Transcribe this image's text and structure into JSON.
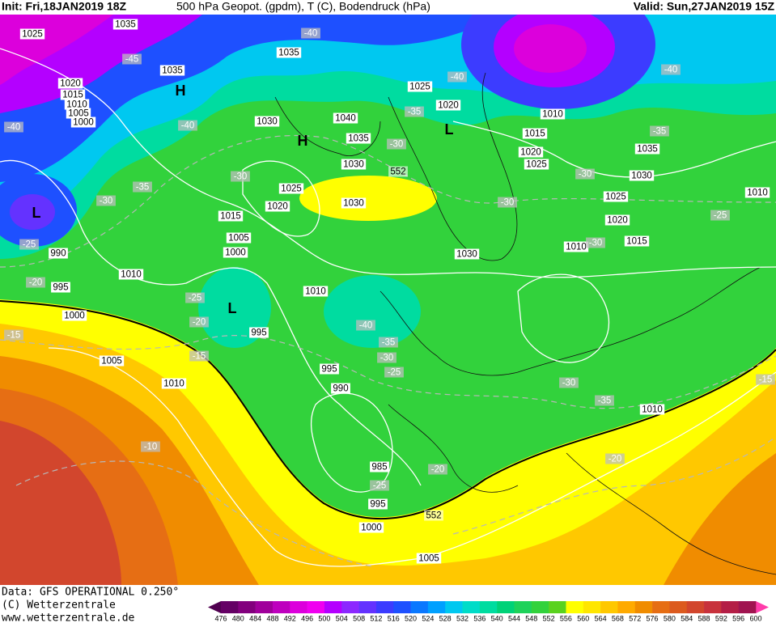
{
  "header": {
    "init": "Init: Fri,18JAN2019 18Z",
    "title": "500 hPa Geopot. (gpdm), T (C), Bodendruck (hPa)",
    "valid": "Valid: Sun,27JAN2019 15Z"
  },
  "footer": {
    "data": "Data: GFS OPERATIONAL 0.250°",
    "copyright": "(C) Wetterzentrale",
    "url": "www.wetterzentrale.de"
  },
  "map": {
    "isobar_labels": [
      "1025",
      "1035",
      "1035",
      "1020",
      "1015",
      "1010",
      "1005",
      "1000",
      "1030",
      "1040",
      "1035",
      "1030",
      "1025",
      "1020",
      "1030",
      "1015",
      "1005",
      "1000",
      "990",
      "1010",
      "995",
      "1000",
      "1005",
      "1010",
      "995",
      "1010",
      "995",
      "990",
      "985",
      "995",
      "1000",
      "1005",
      "1035",
      "1025",
      "1020",
      "1010",
      "1015",
      "1020",
      "1025",
      "1030",
      "1035",
      "1030",
      "1025",
      "1020",
      "1015",
      "1010",
      "1010",
      "1010"
    ],
    "temperature_labels": [
      "-45",
      "-40",
      "-40",
      "-30",
      "-35",
      "-30",
      "-25",
      "-20",
      "-15",
      "-25",
      "-20",
      "-15",
      "-40",
      "-35",
      "-30",
      "-25",
      "-10",
      "-20",
      "-25",
      "-40",
      "-40",
      "-35",
      "-30",
      "-30",
      "-40",
      "-35",
      "-30",
      "-30",
      "-25",
      "-30",
      "-35",
      "-20",
      "-15"
    ],
    "height_labels": [
      "552",
      "552"
    ],
    "pressure_centers": [
      "H",
      "H",
      "L",
      "L",
      "L"
    ]
  },
  "colorbar": {
    "levels": [
      476,
      480,
      484,
      488,
      492,
      496,
      500,
      504,
      508,
      512,
      516,
      520,
      524,
      528,
      532,
      536,
      540,
      544,
      548,
      552,
      556,
      560,
      564,
      568,
      572,
      576,
      580,
      584,
      588,
      592,
      596,
      600
    ],
    "colors": [
      "#640064",
      "#82007d",
      "#a0009b",
      "#be00be",
      "#dc00dc",
      "#f000f0",
      "#b400ff",
      "#8c28ff",
      "#6432ff",
      "#3c3cff",
      "#1e50ff",
      "#0a78ff",
      "#00a0ff",
      "#00c8f0",
      "#00dcc8",
      "#00dca0",
      "#00d278",
      "#1ed25a",
      "#32d23c",
      "#5ad21e",
      "#ffff00",
      "#ffe600",
      "#ffc800",
      "#ffaa00",
      "#f08c00",
      "#e66e14",
      "#dc5a1e",
      "#d2462d",
      "#c8323c",
      "#b41e46",
      "#a01450"
    ],
    "low_color": "#500050",
    "high_color": "#ff3caa"
  }
}
